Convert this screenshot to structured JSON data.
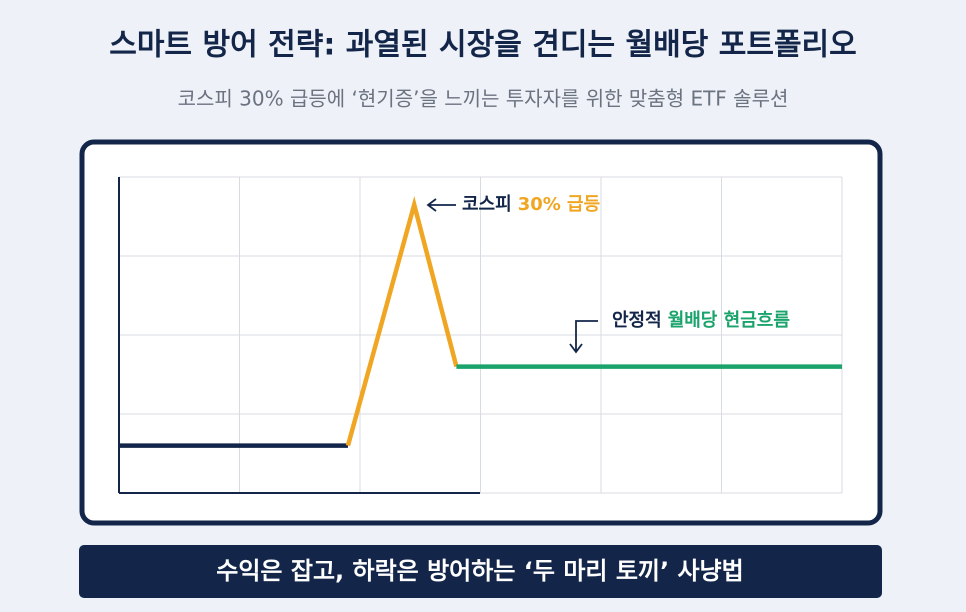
{
  "chart_data": {
    "type": "line",
    "title": "스마트 방어 전략: 과열된 시장을 견디는 월배당 포트폴리오",
    "subtitle": "코스피 30% 급등에 ‘현기증’을 느끼는 투자자를 위한 맞춤형 ETF 솔루션",
    "footer": "수익은 잡고, 하락은 방어하는 ‘두 마리 토끼’ 사냥법",
    "xlim": [
      0,
      6
    ],
    "ylim": [
      0,
      4
    ],
    "xticks": [
      0,
      1,
      2,
      3,
      4,
      5,
      6
    ],
    "yticks": [
      0,
      1,
      2,
      3,
      4
    ],
    "grid": true,
    "series": [
      {
        "color": "#13264a",
        "x": [
          0,
          1.9
        ],
        "values": [
          0.6,
          0.6
        ]
      },
      {
        "color": "#f0a623",
        "x": [
          1.9,
          2.45,
          2.8
        ],
        "values": [
          0.6,
          3.65,
          1.6
        ]
      },
      {
        "color": "#1aa36b",
        "x": [
          2.8,
          6
        ],
        "values": [
          1.6,
          1.6
        ]
      }
    ],
    "annotations": [
      {
        "parts": [
          "코스피",
          "30% 급등"
        ],
        "colors": [
          "#13264a",
          "#f0a623"
        ]
      },
      {
        "parts": [
          "안정적",
          "월배당 현금흐름"
        ],
        "colors": [
          "#13264a",
          "#1aa36b"
        ]
      }
    ]
  }
}
